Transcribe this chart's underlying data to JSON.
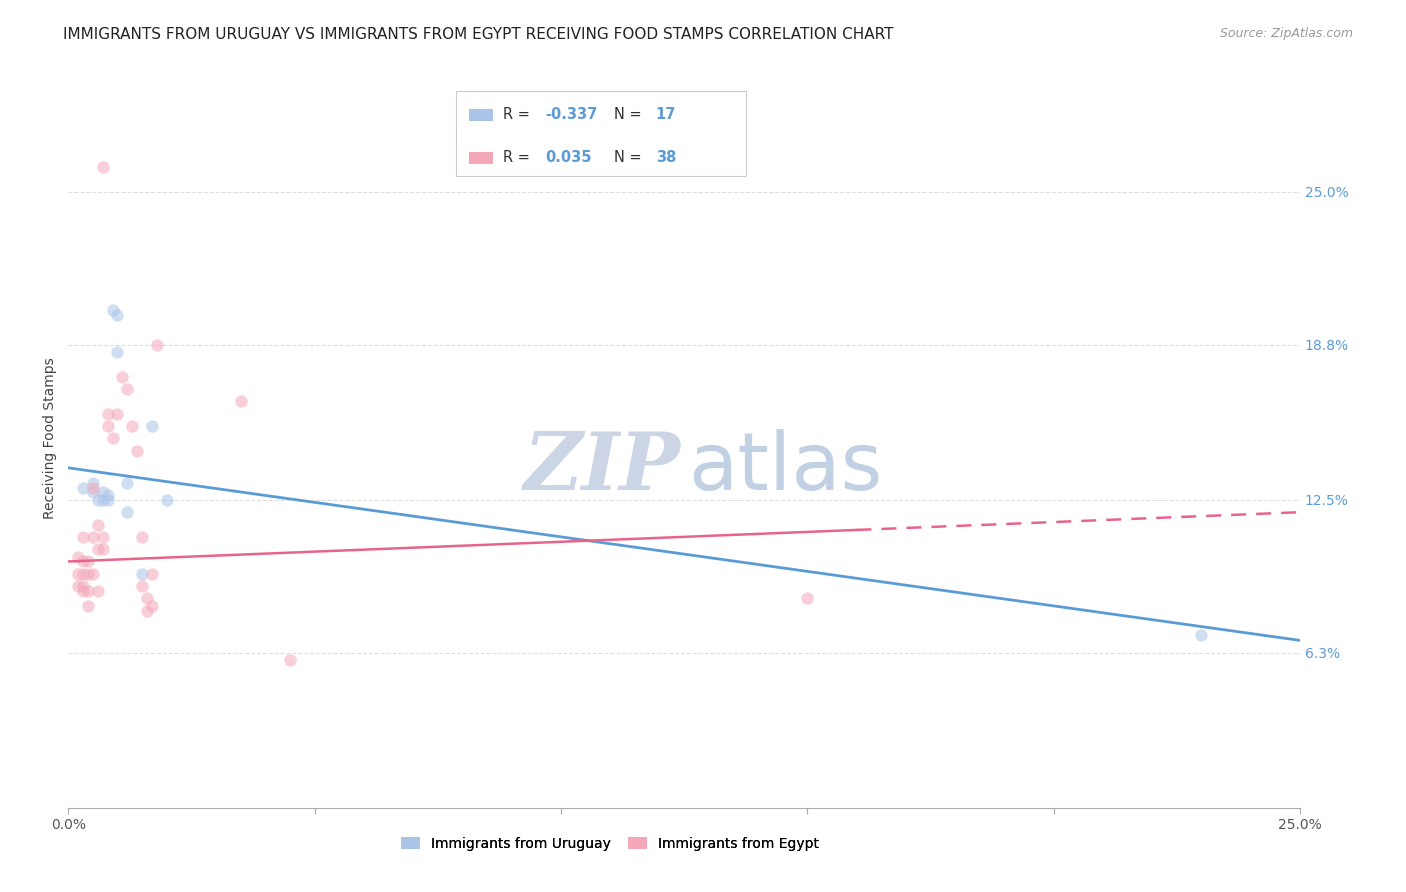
{
  "title": "IMMIGRANTS FROM URUGUAY VS IMMIGRANTS FROM EGYPT RECEIVING FOOD STAMPS CORRELATION CHART",
  "source": "Source: ZipAtlas.com",
  "ylabel": "Receiving Food Stamps",
  "ytick_labels": [
    "25.0%",
    "18.8%",
    "12.5%",
    "6.3%"
  ],
  "ytick_values": [
    25.0,
    18.8,
    12.5,
    6.3
  ],
  "xlim": [
    0.0,
    25.0
  ],
  "ylim": [
    0.0,
    30.0
  ],
  "uruguay_points": [
    [
      0.3,
      13.0
    ],
    [
      0.5,
      12.8
    ],
    [
      0.5,
      13.2
    ],
    [
      0.6,
      12.5
    ],
    [
      0.7,
      12.8
    ],
    [
      0.7,
      12.5
    ],
    [
      0.8,
      12.7
    ],
    [
      0.8,
      12.5
    ],
    [
      0.9,
      20.2
    ],
    [
      1.0,
      20.0
    ],
    [
      1.0,
      18.5
    ],
    [
      1.2,
      13.2
    ],
    [
      1.2,
      12.0
    ],
    [
      1.5,
      9.5
    ],
    [
      1.7,
      15.5
    ],
    [
      2.0,
      12.5
    ],
    [
      23.0,
      7.0
    ]
  ],
  "egypt_points": [
    [
      0.2,
      10.2
    ],
    [
      0.2,
      9.5
    ],
    [
      0.2,
      9.0
    ],
    [
      0.3,
      9.5
    ],
    [
      0.3,
      9.0
    ],
    [
      0.3,
      8.8
    ],
    [
      0.3,
      10.0
    ],
    [
      0.3,
      11.0
    ],
    [
      0.4,
      9.5
    ],
    [
      0.4,
      8.8
    ],
    [
      0.4,
      8.2
    ],
    [
      0.4,
      10.0
    ],
    [
      0.5,
      11.0
    ],
    [
      0.5,
      13.0
    ],
    [
      0.5,
      9.5
    ],
    [
      0.6,
      11.5
    ],
    [
      0.6,
      10.5
    ],
    [
      0.6,
      8.8
    ],
    [
      0.7,
      11.0
    ],
    [
      0.7,
      10.5
    ],
    [
      0.8,
      16.0
    ],
    [
      0.8,
      15.5
    ],
    [
      0.9,
      15.0
    ],
    [
      1.0,
      16.0
    ],
    [
      1.1,
      17.5
    ],
    [
      1.2,
      17.0
    ],
    [
      1.3,
      15.5
    ],
    [
      1.4,
      14.5
    ],
    [
      1.5,
      11.0
    ],
    [
      1.5,
      9.0
    ],
    [
      1.6,
      8.5
    ],
    [
      1.6,
      8.0
    ],
    [
      1.7,
      9.5
    ],
    [
      1.7,
      8.2
    ],
    [
      1.8,
      18.8
    ],
    [
      4.5,
      6.0
    ],
    [
      15.0,
      8.5
    ],
    [
      0.7,
      26.0
    ],
    [
      3.5,
      16.5
    ]
  ],
  "blue_line": {
    "x0": 0.0,
    "y0": 13.8,
    "x1": 25.0,
    "y1": 6.8
  },
  "pink_line": {
    "x0": 0.0,
    "y0": 10.0,
    "x1": 25.0,
    "y1": 12.0
  },
  "pink_dash_start_x": 16.0,
  "background_color": "#ffffff",
  "grid_color": "#dddddd",
  "title_fontsize": 11,
  "source_fontsize": 9,
  "axis_label_fontsize": 10,
  "tick_fontsize": 10,
  "dot_size": 80,
  "dot_alpha": 0.55,
  "blue_color": "#5b9bd5",
  "pink_color": "#e8638a",
  "blue_dot_color": "#aac4e8",
  "pink_dot_color": "#f4a7b9",
  "right_tick_color": "#5b9bd5",
  "watermark_zip_color": "#ccd5e5",
  "watermark_atlas_color": "#b8c8e0",
  "watermark_fontsize": 58
}
